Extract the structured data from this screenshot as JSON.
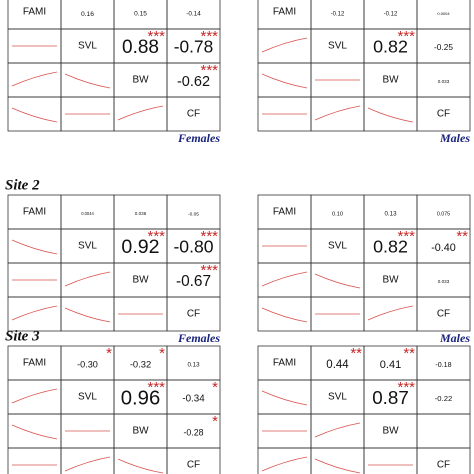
{
  "site_labels": [
    "Site 2",
    "Site 3"
  ],
  "panels": [
    {
      "label": "Females",
      "diag": [
        "FAMI",
        "SVL",
        "BW",
        "CF"
      ],
      "upper": [
        [
          {
            "r": "0.16",
            "stars": ""
          },
          {
            "r": "0.15",
            "stars": ""
          },
          {
            "r": "-0.14",
            "stars": ""
          }
        ],
        [
          {
            "r": "0.88",
            "stars": "***"
          },
          {
            "r": "-0.78",
            "stars": "***"
          }
        ],
        [
          {
            "r": "-0.62",
            "stars": "***"
          }
        ]
      ]
    },
    {
      "label": "Males",
      "diag": [
        "FAMI",
        "SVL",
        "BW",
        "CF"
      ],
      "upper": [
        [
          {
            "r": "-0.12",
            "stars": ""
          },
          {
            "r": "-0.12",
            "stars": ""
          },
          {
            "r": "0.0004",
            "stars": ""
          }
        ],
        [
          {
            "r": "0.82",
            "stars": "***"
          },
          {
            "r": "-0.25",
            "stars": ""
          }
        ],
        [
          {
            "r": "0.033",
            "stars": ""
          }
        ]
      ]
    },
    {
      "label": "Females",
      "diag": [
        "FAMI",
        "SVL",
        "BW",
        "CF"
      ],
      "upper": [
        [
          {
            "r": "0.0044",
            "stars": ""
          },
          {
            "r": "0.036",
            "stars": ""
          },
          {
            "r": "-0.05",
            "stars": ""
          }
        ],
        [
          {
            "r": "0.92",
            "stars": "***"
          },
          {
            "r": "-0.80",
            "stars": "***"
          }
        ],
        [
          {
            "r": "-0.67",
            "stars": "***"
          }
        ]
      ]
    },
    {
      "label": "Males",
      "diag": [
        "FAMI",
        "SVL",
        "BW",
        "CF"
      ],
      "upper": [
        [
          {
            "r": "0.10",
            "stars": ""
          },
          {
            "r": "0.13",
            "stars": ""
          },
          {
            "r": "0.075",
            "stars": ""
          }
        ],
        [
          {
            "r": "0.82",
            "stars": "***"
          },
          {
            "r": "-0.40",
            "stars": "**"
          }
        ],
        [
          {
            "r": "0.033",
            "stars": ""
          }
        ]
      ]
    },
    {
      "label": "",
      "diag": [
        "FAMI",
        "SVL",
        "BW",
        "CF"
      ],
      "upper": [
        [
          {
            "r": "-0.30",
            "stars": "*"
          },
          {
            "r": "-0.32",
            "stars": "*"
          },
          {
            "r": "0.13",
            "stars": ""
          }
        ],
        [
          {
            "r": "0.96",
            "stars": "***"
          },
          {
            "r": "-0.34",
            "stars": "*"
          }
        ],
        [
          {
            "r": "-0.28",
            "stars": "*"
          }
        ]
      ]
    },
    {
      "label": "",
      "diag": [
        "FAMI",
        "SVL",
        "BW",
        "CF"
      ],
      "upper": [
        [
          {
            "r": "0.44",
            "stars": "**"
          },
          {
            "r": "0.41",
            "stars": "**"
          },
          {
            "r": "-0.18",
            "stars": ""
          }
        ],
        [
          {
            "r": "0.87",
            "stars": "***"
          },
          {
            "r": "-0.22",
            "stars": ""
          }
        ],
        [
          {
            "r": "",
            "stars": ""
          }
        ]
      ]
    }
  ]
}
